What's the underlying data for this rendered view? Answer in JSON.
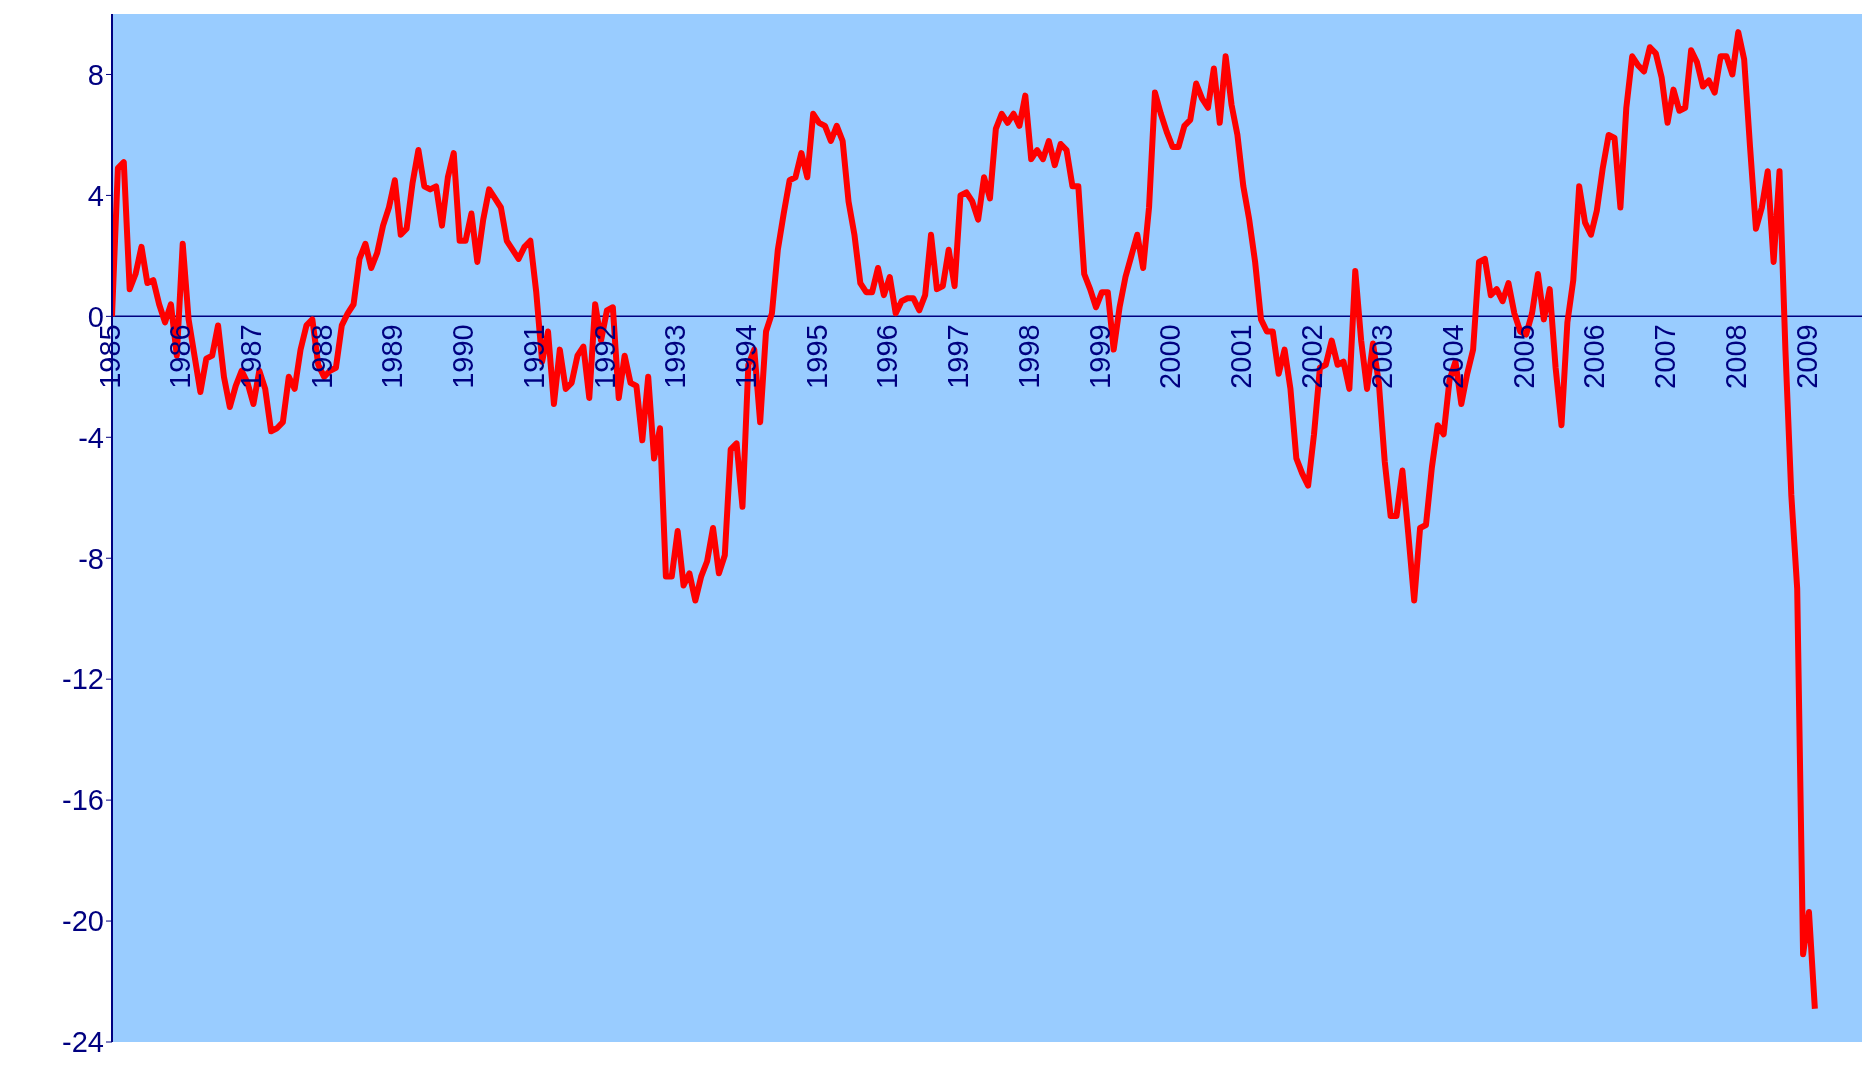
{
  "chart_data": {
    "type": "line",
    "x": [
      "1985-01",
      "1985-02",
      "1985-03",
      "1985-04",
      "1985-05",
      "1985-06",
      "1985-07",
      "1985-08",
      "1985-09",
      "1985-10",
      "1985-11",
      "1985-12",
      "1986-01",
      "1986-02",
      "1986-03",
      "1986-04",
      "1986-05",
      "1986-06",
      "1986-07",
      "1986-08",
      "1986-09",
      "1986-10",
      "1986-11",
      "1986-12",
      "1987-01",
      "1987-02",
      "1987-03",
      "1987-04",
      "1987-05",
      "1987-06",
      "1987-07",
      "1987-08",
      "1987-09",
      "1987-10",
      "1987-11",
      "1987-12",
      "1988-01",
      "1988-02",
      "1988-03",
      "1988-04",
      "1988-05",
      "1988-06",
      "1988-07",
      "1988-08",
      "1988-09",
      "1988-10",
      "1988-11",
      "1988-12",
      "1989-01",
      "1989-02",
      "1989-03",
      "1989-04",
      "1989-05",
      "1989-06",
      "1989-07",
      "1989-08",
      "1989-09",
      "1989-10",
      "1989-11",
      "1989-12",
      "1990-01",
      "1990-02",
      "1990-03",
      "1990-04",
      "1990-05",
      "1990-06",
      "1990-07",
      "1990-08",
      "1990-09",
      "1990-10",
      "1990-11",
      "1990-12",
      "1991-01",
      "1991-02",
      "1991-03",
      "1991-04",
      "1991-05",
      "1991-06",
      "1991-07",
      "1991-08",
      "1991-09",
      "1991-10",
      "1991-11",
      "1991-12",
      "1992-01",
      "1992-02",
      "1992-03",
      "1992-04",
      "1992-05",
      "1992-06",
      "1992-07",
      "1992-08",
      "1992-09",
      "1992-10",
      "1992-11",
      "1992-12",
      "1993-01",
      "1993-02",
      "1993-03",
      "1993-04",
      "1993-05",
      "1993-06",
      "1993-07",
      "1993-08",
      "1993-09",
      "1993-10",
      "1993-11",
      "1993-12",
      "1994-01",
      "1994-02",
      "1994-03",
      "1994-04",
      "1994-05",
      "1994-06",
      "1994-07",
      "1994-08",
      "1994-09",
      "1994-10",
      "1994-11",
      "1994-12",
      "1995-01",
      "1995-02",
      "1995-03",
      "1995-04",
      "1995-05",
      "1995-06",
      "1995-07",
      "1995-08",
      "1995-09",
      "1995-10",
      "1995-11",
      "1995-12",
      "1996-01",
      "1996-02",
      "1996-03",
      "1996-04",
      "1996-05",
      "1996-06",
      "1996-07",
      "1996-08",
      "1996-09",
      "1996-10",
      "1996-11",
      "1996-12",
      "1997-01",
      "1997-02",
      "1997-03",
      "1997-04",
      "1997-05",
      "1997-06",
      "1997-07",
      "1997-08",
      "1997-09",
      "1997-10",
      "1997-11",
      "1997-12",
      "1998-01",
      "1998-02",
      "1998-03",
      "1998-04",
      "1998-05",
      "1998-06",
      "1998-07",
      "1998-08",
      "1998-09",
      "1998-10",
      "1998-11",
      "1998-12",
      "1999-01",
      "1999-02",
      "1999-03",
      "1999-04",
      "1999-05",
      "1999-06",
      "1999-07",
      "1999-08",
      "1999-09",
      "1999-10",
      "1999-11",
      "1999-12",
      "2000-01",
      "2000-02",
      "2000-03",
      "2000-04",
      "2000-05",
      "2000-06",
      "2000-07",
      "2000-08",
      "2000-09",
      "2000-10",
      "2000-11",
      "2000-12",
      "2001-01",
      "2001-02",
      "2001-03",
      "2001-04",
      "2001-05",
      "2001-06",
      "2001-07",
      "2001-08",
      "2001-09",
      "2001-10",
      "2001-11",
      "2001-12",
      "2002-01",
      "2002-02",
      "2002-03",
      "2002-04",
      "2002-05",
      "2002-06",
      "2002-07",
      "2002-08",
      "2002-09",
      "2002-10",
      "2002-11",
      "2002-12",
      "2003-01",
      "2003-02",
      "2003-03",
      "2003-04",
      "2003-05",
      "2003-06",
      "2003-07",
      "2003-08",
      "2003-09",
      "2003-10",
      "2003-11",
      "2003-12",
      "2004-01",
      "2004-02",
      "2004-03",
      "2004-04",
      "2004-05",
      "2004-06",
      "2004-07",
      "2004-08",
      "2004-09",
      "2004-10",
      "2004-11",
      "2004-12",
      "2005-01",
      "2005-02",
      "2005-03",
      "2005-04",
      "2005-05",
      "2005-06",
      "2005-07",
      "2005-08",
      "2005-09",
      "2005-10",
      "2005-11",
      "2005-12",
      "2006-01",
      "2006-02",
      "2006-03",
      "2006-04",
      "2006-05",
      "2006-06",
      "2006-07",
      "2006-08",
      "2006-09",
      "2006-10",
      "2006-11",
      "2006-12",
      "2007-01",
      "2007-02",
      "2007-03",
      "2007-04",
      "2007-05",
      "2007-06",
      "2007-07",
      "2007-08",
      "2007-09",
      "2007-10",
      "2007-11",
      "2007-12",
      "2008-01",
      "2008-02",
      "2008-03",
      "2008-04",
      "2008-05",
      "2008-06",
      "2008-07",
      "2008-08",
      "2008-09",
      "2008-10",
      "2008-11",
      "2008-12",
      "2009-01",
      "2009-02"
    ],
    "series": [
      {
        "color": "#ff0000",
        "values": [
          0,
          4.9,
          5.1,
          0.9,
          1.4,
          2.3,
          1.1,
          1.2,
          0.4,
          -0.2,
          0.4,
          -1.3,
          2.4,
          -0.1,
          -1.3,
          -2.5,
          -1.4,
          -1.3,
          -0.3,
          -2.0,
          -3.0,
          -2.3,
          -1.8,
          -2.2,
          -2.9,
          -1.8,
          -2.4,
          -3.8,
          -3.7,
          -3.5,
          -2.0,
          -2.4,
          -1.1,
          -0.3,
          -0.1,
          -1.6,
          -2.0,
          -1.8,
          -1.7,
          -0.3,
          0.1,
          0.4,
          1.9,
          2.4,
          1.6,
          2.1,
          3.0,
          3.6,
          4.5,
          2.7,
          2.9,
          4.4,
          5.5,
          4.3,
          4.2,
          4.3,
          3.0,
          4.6,
          5.4,
          2.5,
          2.5,
          3.4,
          1.8,
          3.2,
          4.2,
          3.9,
          3.6,
          2.5,
          2.2,
          1.9,
          2.3,
          2.5,
          0.8,
          -1.5,
          -0.5,
          -2.9,
          -1.1,
          -2.4,
          -2.2,
          -1.3,
          -1.0,
          -2.7,
          0.4,
          -0.8,
          0.2,
          0.3,
          -2.7,
          -1.3,
          -2.2,
          -2.3,
          -4.1,
          -2.0,
          -4.7,
          -3.7,
          -8.6,
          -8.6,
          -7.1,
          -8.9,
          -8.5,
          -9.4,
          -8.6,
          -8.1,
          -7.0,
          -8.5,
          -7.9,
          -4.4,
          -4.2,
          -6.3,
          -1.6,
          -1.1,
          -3.5,
          -0.5,
          0.1,
          2.2,
          3.4,
          4.5,
          4.6,
          5.4,
          4.6,
          6.7,
          6.4,
          6.3,
          5.8,
          6.3,
          5.8,
          3.8,
          2.7,
          1.1,
          0.8,
          0.8,
          1.6,
          0.7,
          1.3,
          0.1,
          0.5,
          0.6,
          0.6,
          0.2,
          0.7,
          2.7,
          0.9,
          1.0,
          2.2,
          1.0,
          4.0,
          4.1,
          3.8,
          3.2,
          4.6,
          3.9,
          6.2,
          6.7,
          6.4,
          6.7,
          6.3,
          7.3,
          5.2,
          5.5,
          5.2,
          5.8,
          5.0,
          5.7,
          5.5,
          4.3,
          4.3,
          1.4,
          0.9,
          0.3,
          0.8,
          0.8,
          -1.1,
          0.3,
          1.3,
          2.0,
          2.7,
          1.6,
          3.6,
          7.4,
          6.7,
          6.1,
          5.6,
          5.6,
          6.3,
          6.5,
          7.7,
          7.2,
          6.9,
          8.2,
          6.4,
          8.6,
          7.0,
          6.0,
          4.3,
          3.2,
          1.8,
          -0.1,
          -0.5,
          -0.5,
          -1.9,
          -1.1,
          -2.4,
          -4.7,
          -5.2,
          -5.6,
          -3.9,
          -1.7,
          -1.6,
          -0.8,
          -1.6,
          -1.5,
          -2.4,
          1.5,
          -0.8,
          -2.4,
          -0.9,
          -2.2,
          -4.8,
          -6.6,
          -6.6,
          -5.1,
          -7.2,
          -9.4,
          -7.0,
          -6.9,
          -5.0,
          -3.6,
          -3.9,
          -2.1,
          -1.5,
          -2.9,
          -1.9,
          -1.1,
          1.8,
          1.9,
          0.7,
          0.9,
          0.5,
          1.1,
          0.1,
          -0.5,
          -0.6,
          0.1,
          1.4,
          -0.1,
          0.9,
          -1.7,
          -3.6,
          -0.2,
          1.2,
          4.3,
          3.1,
          2.7,
          3.5,
          4.9,
          6.0,
          5.9,
          3.6,
          6.9,
          8.6,
          8.3,
          8.1,
          8.9,
          8.7,
          7.9,
          6.4,
          7.5,
          6.8,
          6.9,
          8.8,
          8.4,
          7.6,
          7.8,
          7.4,
          8.6,
          8.6,
          8.0,
          9.4,
          8.5,
          5.6,
          2.9,
          3.6,
          4.8,
          1.8,
          4.8,
          -1.1,
          -5.9,
          -9.0,
          -21.1,
          -19.7,
          -22.9
        ]
      }
    ],
    "xlim": [
      "1985-01",
      "2009-10"
    ],
    "xticks": [
      "1985",
      "1986",
      "1987",
      "1988",
      "1989",
      "1990",
      "1991",
      "1992",
      "1993",
      "1994",
      "1995",
      "1996",
      "1997",
      "1998",
      "1999",
      "2000",
      "2001",
      "2002",
      "2003",
      "2004",
      "2005",
      "2006",
      "2007",
      "2008",
      "2009"
    ],
    "ylim": [
      -24,
      10
    ],
    "yticks": [
      -24,
      -20,
      -16,
      -12,
      -8,
      -4,
      0,
      4,
      8
    ],
    "grid": false,
    "marker": "none",
    "line_style": "solid"
  }
}
